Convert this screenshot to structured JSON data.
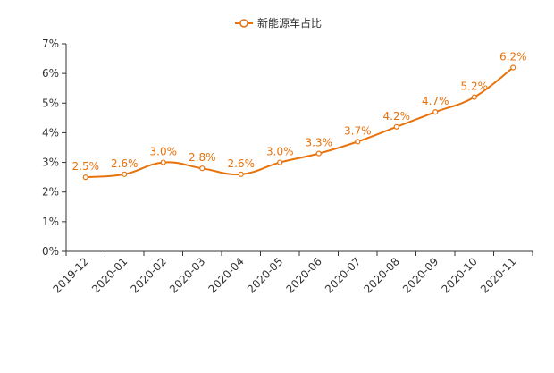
{
  "chart_data": {
    "type": "line",
    "categories": [
      "2019-12",
      "2020-01",
      "2020-02",
      "2020-03",
      "2020-04",
      "2020-05",
      "2020-06",
      "2020-07",
      "2020-08",
      "2020-09",
      "2020-10",
      "2020-11"
    ],
    "series": [
      {
        "name": "新能源车占比",
        "values": [
          2.5,
          2.6,
          3.0,
          2.8,
          2.6,
          3.0,
          3.3,
          3.7,
          4.2,
          4.7,
          5.2,
          6.2
        ],
        "labels": [
          "2.5%",
          "2.6%",
          "3.0%",
          "2.8%",
          "2.6%",
          "3.0%",
          "3.3%",
          "3.7%",
          "4.2%",
          "4.7%",
          "5.2%",
          "6.2%"
        ]
      }
    ],
    "yticks": [
      "0%",
      "1%",
      "2%",
      "3%",
      "4%",
      "5%",
      "6%",
      "7%"
    ],
    "ylim": [
      0,
      7
    ],
    "grid": false,
    "legend_position": "top-center",
    "colors": {
      "series": "#e8720c",
      "axis": "#333333"
    }
  }
}
